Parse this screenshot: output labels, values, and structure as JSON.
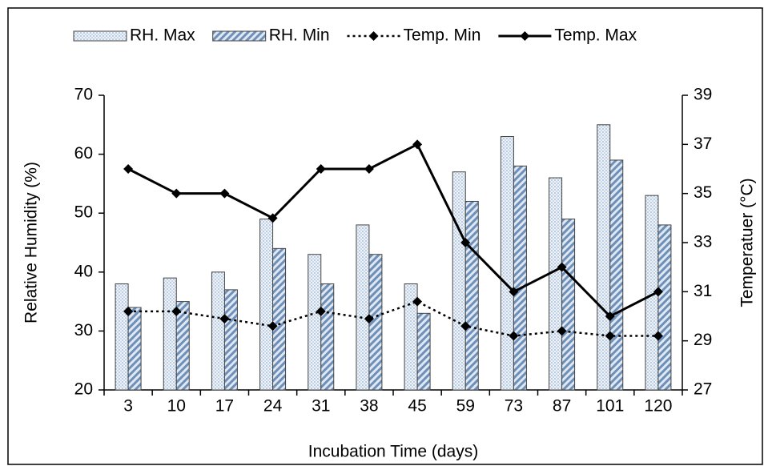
{
  "chart_data": {
    "type": "bar-line",
    "x_label": "Incubation Time (days)",
    "y_label": "Relative Humidity (%)",
    "y2_label": "Temperatuer (°C)",
    "categories": [
      "3",
      "10",
      "17",
      "24",
      "31",
      "38",
      "45",
      "59",
      "73",
      "87",
      "101",
      "120"
    ],
    "series": [
      {
        "name": "RH. Max",
        "kind": "bar",
        "pattern": "dots",
        "color": "#c9d9ea",
        "values": [
          38,
          39,
          40,
          49,
          43,
          48,
          38,
          57,
          63,
          56,
          65,
          53
        ]
      },
      {
        "name": "RH. Min",
        "kind": "bar",
        "pattern": "stripes",
        "color": "#7f9fc4",
        "values": [
          34,
          35,
          37,
          44,
          38,
          43,
          33,
          52,
          58,
          49,
          59,
          48
        ]
      },
      {
        "name": "Temp. Min",
        "kind": "line",
        "style": "dotted",
        "axis": "y2",
        "color": "#000000",
        "values": [
          30.2,
          30.2,
          29.9,
          29.6,
          30.2,
          29.9,
          30.6,
          29.6,
          29.2,
          29.4,
          29.2,
          29.2
        ]
      },
      {
        "name": "Temp. Max",
        "kind": "line",
        "style": "solid",
        "axis": "y2",
        "color": "#000000",
        "values": [
          36,
          35,
          35,
          34,
          36,
          36,
          37,
          33,
          31,
          32,
          30,
          31
        ]
      }
    ],
    "ylim": [
      20,
      70
    ],
    "yticks": [
      20,
      30,
      40,
      50,
      60,
      70
    ],
    "y2lim": [
      27,
      39
    ],
    "y2ticks": [
      27,
      29,
      31,
      33,
      35,
      37,
      39
    ],
    "legend": "top",
    "grid": false
  }
}
